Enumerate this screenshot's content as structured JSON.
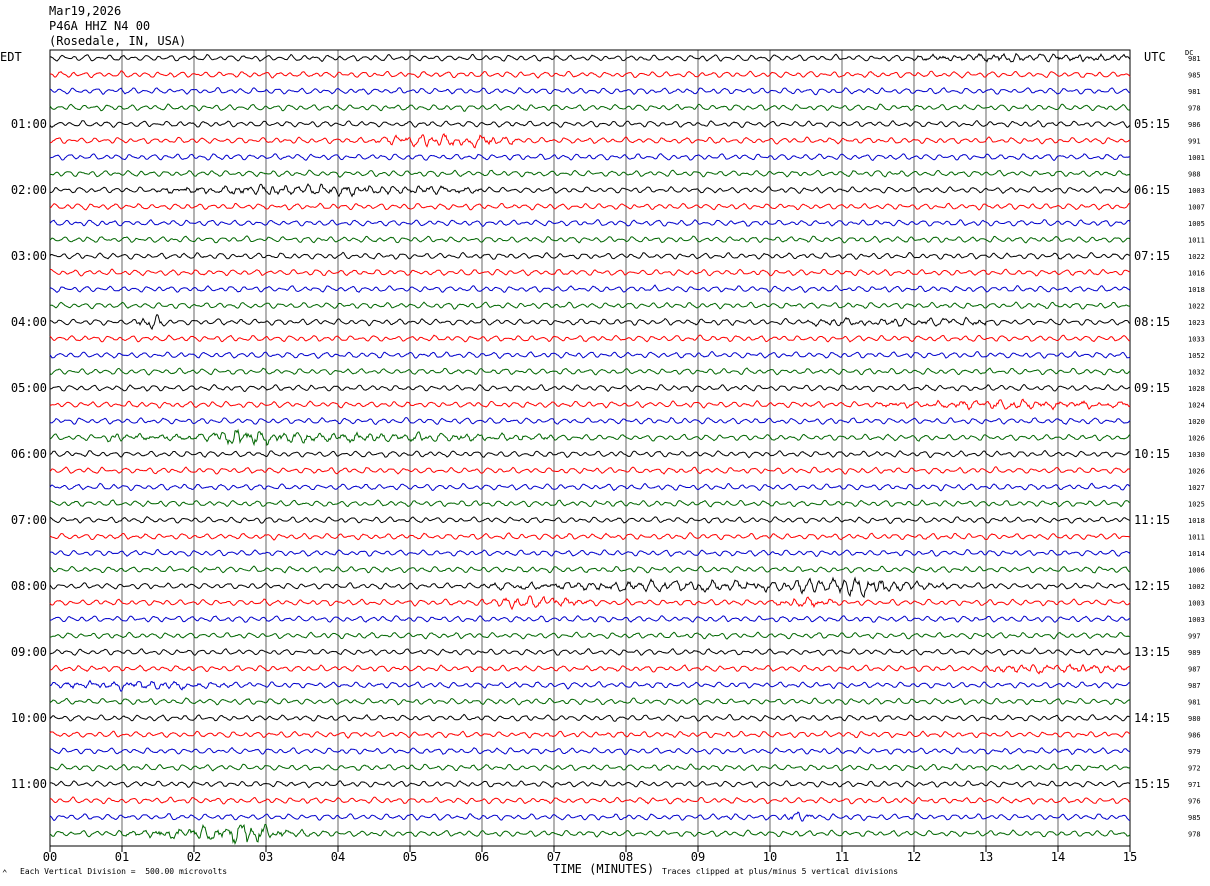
{
  "header": {
    "date": "Mar19,2026",
    "station": "P46A HHZ N4 00",
    "location": "(Rosedale, IN, USA)"
  },
  "left_tz": "EDT",
  "right_tz": "UTC",
  "dc_label": "DC",
  "footer": {
    "scale": "Each Vertical Division =  500.00 microvolts",
    "clip": "Traces clipped at plus/minus 5 vertical divisions",
    "corner_mark": "⌃"
  },
  "colors": {
    "trace_cycle": [
      "#000000",
      "#ff0000",
      "#0000cc",
      "#006600"
    ],
    "grid": "#000000"
  },
  "chart_data": {
    "type": "line",
    "title": "Mar19,2026 P46A HHZ N4 00 (Rosedale, IN, USA)",
    "xlabel": "TIME (MINUTES)",
    "ylabel": "",
    "xlim": [
      0,
      15
    ],
    "x_ticks": [
      "00",
      "01",
      "02",
      "03",
      "04",
      "05",
      "06",
      "07",
      "08",
      "09",
      "10",
      "11",
      "12",
      "13",
      "14",
      "15"
    ],
    "left_time_labels": [
      "01:00",
      "02:00",
      "03:00",
      "04:00",
      "05:00",
      "06:00",
      "07:00",
      "08:00",
      "09:00",
      "10:00",
      "11:00"
    ],
    "right_time_labels": [
      "05:15",
      "06:15",
      "07:15",
      "08:15",
      "09:15",
      "10:15",
      "11:15",
      "12:15",
      "13:15",
      "14:15",
      "15:15"
    ],
    "dc_offsets": [
      981,
      985,
      981,
      978,
      986,
      991,
      1001,
      988,
      1003,
      1007,
      1005,
      1011,
      1022,
      1016,
      1018,
      1022,
      1023,
      1033,
      1052,
      1032,
      1028,
      1024,
      1020,
      1026,
      1030,
      1026,
      1027,
      1025,
      1018,
      1011,
      1014,
      1006,
      1002,
      1003,
      1003,
      997,
      989,
      987,
      987,
      981,
      980,
      986,
      979,
      972,
      971,
      976,
      985,
      978
    ],
    "grid": true,
    "trace_count": 48,
    "minutes_per_trace": 15,
    "vertical_division_microvolts": 500,
    "events": [
      {
        "trace": 0,
        "start_min": 12.0,
        "end_min": 15.0,
        "amp": 1.5
      },
      {
        "trace": 5,
        "start_min": 4.5,
        "end_min": 6.5,
        "amp": 2.0
      },
      {
        "trace": 8,
        "start_min": 1.5,
        "end_min": 6.0,
        "amp": 1.8
      },
      {
        "trace": 16,
        "start_min": 1.2,
        "end_min": 1.6,
        "amp": 2.2
      },
      {
        "trace": 16,
        "start_min": 10.5,
        "end_min": 13.0,
        "amp": 1.3
      },
      {
        "trace": 21,
        "start_min": 11.5,
        "end_min": 15.0,
        "amp": 1.4
      },
      {
        "trace": 23,
        "start_min": 0.8,
        "end_min": 7.0,
        "amp": 1.6
      },
      {
        "trace": 23,
        "start_min": 2.2,
        "end_min": 3.3,
        "amp": 3.2
      },
      {
        "trace": 32,
        "start_min": 6.0,
        "end_min": 12.5,
        "amp": 1.8
      },
      {
        "trace": 32,
        "start_min": 10.0,
        "end_min": 12.2,
        "amp": 2.8
      },
      {
        "trace": 33,
        "start_min": 6.0,
        "end_min": 7.5,
        "amp": 1.8
      },
      {
        "trace": 33,
        "start_min": 10.0,
        "end_min": 11.0,
        "amp": 1.8
      },
      {
        "trace": 37,
        "start_min": 13.0,
        "end_min": 15.0,
        "amp": 1.5
      },
      {
        "trace": 38,
        "start_min": 0.0,
        "end_min": 2.5,
        "amp": 1.5
      },
      {
        "trace": 46,
        "start_min": 10.2,
        "end_min": 10.6,
        "amp": 1.6
      },
      {
        "trace": 47,
        "start_min": 1.0,
        "end_min": 3.6,
        "amp": 2.2
      },
      {
        "trace": 47,
        "start_min": 2.4,
        "end_min": 3.1,
        "amp": 4.0
      }
    ]
  }
}
